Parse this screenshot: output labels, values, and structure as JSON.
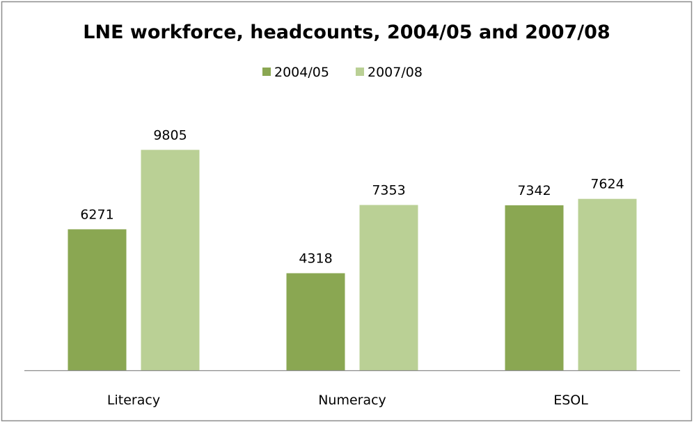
{
  "chart_data": {
    "type": "bar",
    "title": "LNE workforce, headcounts, 2004/05 and 2007/08",
    "xlabel": "",
    "ylabel": "",
    "categories": [
      "Literacy",
      "Numeracy",
      "ESOL"
    ],
    "series": [
      {
        "name": "2004/05",
        "values": [
          6271,
          4318,
          7342
        ],
        "color": "#8aa752"
      },
      {
        "name": "2007/08",
        "values": [
          9805,
          7353,
          7624
        ],
        "color": "#bad095"
      }
    ],
    "ylim": [
      0,
      12000
    ],
    "grid": false,
    "legend_position": "top-center",
    "data_labels": true
  },
  "colors": {
    "background": "#ffffff",
    "border": "#8c8c8c",
    "axis": "#8c8c8c",
    "text": "#000000"
  }
}
